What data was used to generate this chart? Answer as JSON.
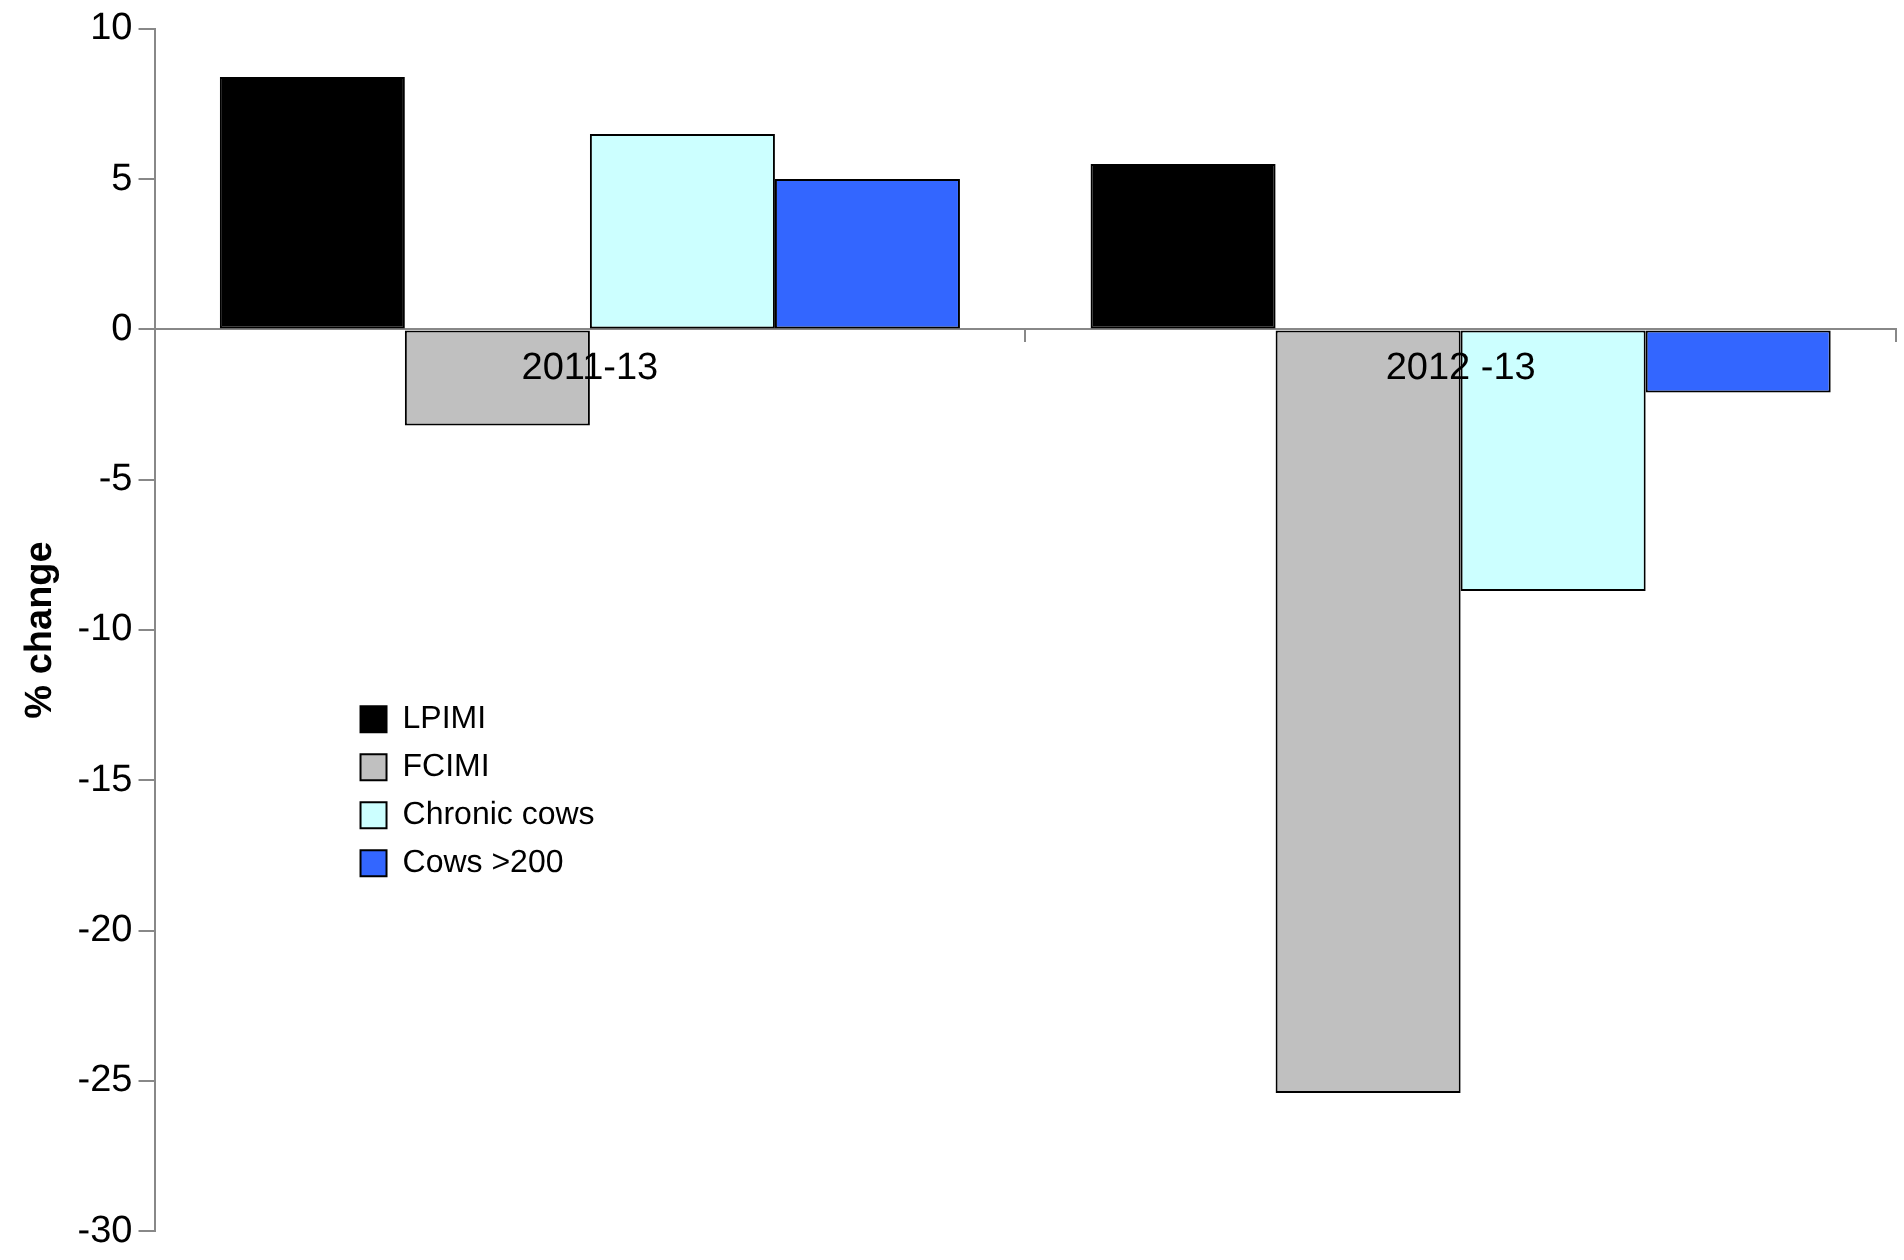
{
  "chart_data": {
    "type": "bar",
    "ylabel": "% change",
    "categories": [
      "2011-13",
      "2012 -13"
    ],
    "series": [
      {
        "name": "LPIMI",
        "color": "#000000",
        "values": [
          8.4,
          5.5
        ]
      },
      {
        "name": "FCIMI",
        "color": "#c0c0c0",
        "values": [
          -3.2,
          -25.4
        ]
      },
      {
        "name": "Chronic cows",
        "color": "#ccffff",
        "values": [
          6.5,
          -8.7
        ]
      },
      {
        "name": "Cows >200",
        "color": "#3366ff",
        "values": [
          5.0,
          -2.1
        ]
      }
    ],
    "ylim": [
      -30,
      10
    ],
    "yticks": [
      -30,
      -25,
      -20,
      -15,
      -10,
      -5,
      0,
      5,
      10
    ],
    "grid": false,
    "legend": "left"
  }
}
